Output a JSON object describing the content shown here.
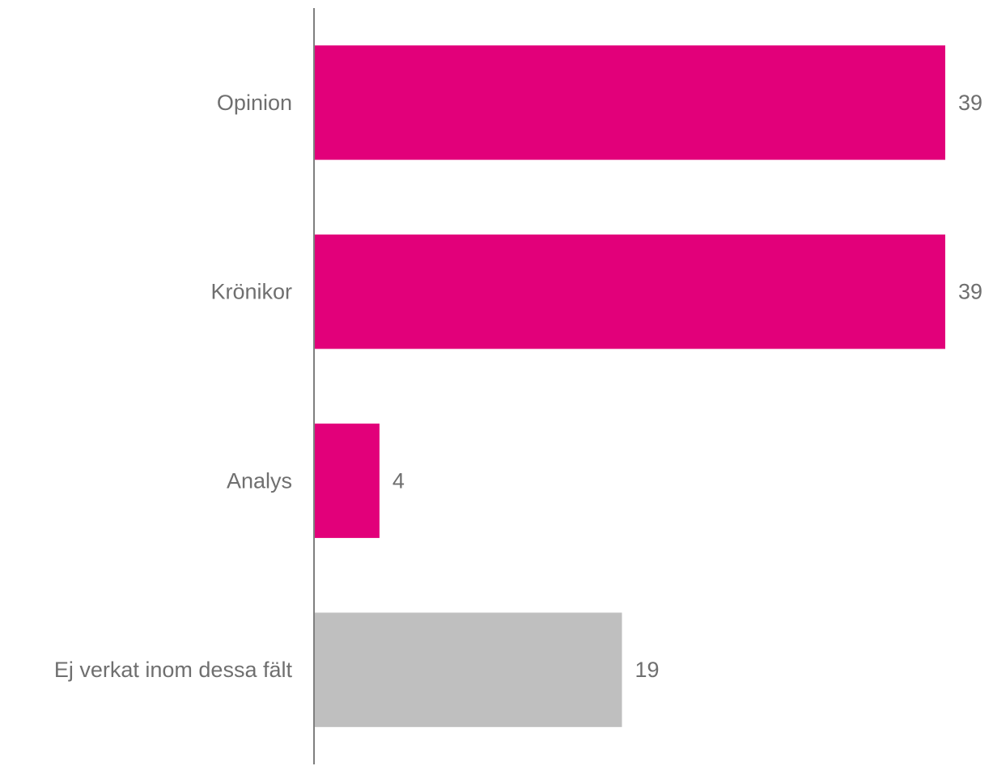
{
  "chart_data": {
    "type": "bar",
    "orientation": "horizontal",
    "categories": [
      "Opinion",
      "Krönikor",
      "Analys",
      "Ej verkat inom dessa fält"
    ],
    "values": [
      39,
      39,
      4,
      19
    ],
    "bar_colors": [
      "#e2007a",
      "#e2007a",
      "#e2007a",
      "#bfbfbf"
    ],
    "data_labels": [
      "39",
      "39",
      "4",
      "19"
    ],
    "xlim": [
      0,
      39
    ],
    "grid": false,
    "legend": "none"
  },
  "colors": {
    "highlight": "#e2007a",
    "neutral": "#bfbfbf",
    "axis": "#7f7f7f",
    "text": "#6f6f6f"
  }
}
